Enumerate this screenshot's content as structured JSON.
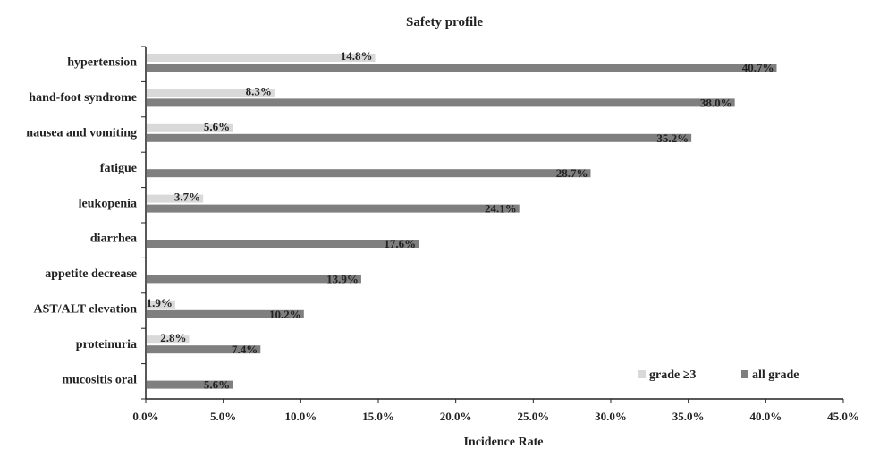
{
  "chart_data": {
    "type": "bar",
    "orientation": "horizontal",
    "title": "Safety profile",
    "xlabel": "Incidence Rate",
    "ylabel": "",
    "xlim": [
      0,
      45
    ],
    "x_ticks": [
      "0.0%",
      "5.0%",
      "10.0%",
      "15.0%",
      "20.0%",
      "25.0%",
      "30.0%",
      "35.0%",
      "40.0%",
      "45.0%"
    ],
    "categories": [
      "hypertension",
      "hand-foot syndrome",
      "nausea and vomiting",
      "fatigue",
      "leukopenia",
      "diarrhea",
      "appetite decrease",
      "AST/ALT elevation",
      "proteinuria",
      "mucositis oral"
    ],
    "series": [
      {
        "name": "grade ≥3",
        "color": "#d9d9d9",
        "values": [
          14.8,
          8.3,
          5.6,
          0,
          3.7,
          0,
          0,
          1.9,
          2.8,
          0
        ],
        "labels": [
          "14.8%",
          "8.3%",
          "5.6%",
          "",
          "3.7%",
          "",
          "",
          "1.9%",
          "2.8%",
          ""
        ]
      },
      {
        "name": "all grade",
        "color": "#7f7f7f",
        "values": [
          40.7,
          38.0,
          35.2,
          28.7,
          24.1,
          17.6,
          13.9,
          10.2,
          7.4,
          5.6
        ],
        "labels": [
          "40.7%",
          "38.0%",
          "35.2%",
          "28.7%",
          "24.1%",
          "17.6%",
          "13.9%",
          "10.2%",
          "7.4%",
          "5.6%"
        ]
      }
    ],
    "grid": false,
    "legend_position": "bottom-right"
  }
}
